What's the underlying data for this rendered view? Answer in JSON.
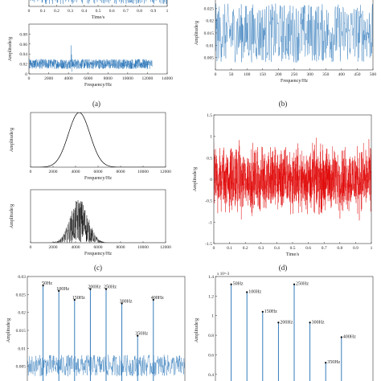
{
  "colors": {
    "blue": "#1f6fb4",
    "red": "#e00000",
    "black": "#000000",
    "axis": "#333333"
  },
  "panel_labels": [
    "(a)",
    "(b)",
    "(c)",
    "(d)"
  ],
  "chart_data": [
    {
      "id": "a-top",
      "type": "line",
      "xlabel": "Time/s",
      "ylabel": "",
      "xlim": [
        0,
        1
      ],
      "ylim": [
        -1,
        1
      ],
      "x_ticks": [
        "0",
        "0.1",
        "0.2",
        "0.3",
        "0.4",
        "0.5",
        "0.6",
        "0.7",
        "0.8",
        "0.9",
        "1"
      ],
      "y_ticks": [
        "0"
      ],
      "color": "#1f6fb4"
    },
    {
      "id": "a-bottom",
      "type": "line",
      "xlabel": "Frequency/Hz",
      "ylabel": "Amplitude/g",
      "xlim": [
        0,
        14000
      ],
      "ylim": [
        0,
        0.1
      ],
      "x_ticks": [
        "0",
        "2000",
        "4000",
        "6000",
        "8000",
        "10000",
        "12000",
        "14000"
      ],
      "y_ticks": [
        "0",
        "0.02",
        "0.04",
        "0.06",
        "0.08"
      ],
      "range": [
        0,
        12500
      ],
      "baseline": 0.02,
      "noise": 0.01,
      "peaks": [
        [
          4300,
          0.09
        ]
      ],
      "color": "#1f6fb4"
    },
    {
      "id": "b",
      "type": "line",
      "xlabel": "Frequency/Hz",
      "ylabel": "Amplitude/g",
      "xlim": [
        0,
        500
      ],
      "ylim": [
        0,
        0.03
      ],
      "x_ticks": [
        "0",
        "50",
        "100",
        "150",
        "200",
        "250",
        "300",
        "350",
        "400",
        "450",
        "500"
      ],
      "y_ticks": [
        "0.005",
        "0.01",
        "0.015",
        "0.02",
        "0.025"
      ],
      "range": [
        0,
        500
      ],
      "baseline": 0.015,
      "noise": 0.012,
      "color": "#1f6fb4"
    },
    {
      "id": "c-top",
      "type": "line",
      "xlabel": "Frequency/Hz",
      "ylabel": "Amplitude/g",
      "xlim": [
        0,
        12500
      ],
      "ylim": [
        0,
        1
      ],
      "x_ticks": [
        "0",
        "2000",
        "4000",
        "6000",
        "8000",
        "10000",
        "12000"
      ],
      "y_ticks": [],
      "gaussian": {
        "center": 4500,
        "sigma": 1000,
        "peak": 1
      },
      "color": "#000000"
    },
    {
      "id": "c-bottom",
      "type": "line",
      "xlabel": "Frequency/Hz",
      "ylabel": "Amplitude/g",
      "xlim": [
        0,
        12500
      ],
      "ylim": [
        0,
        1
      ],
      "x_ticks": [
        "0",
        "2000",
        "4000",
        "6000",
        "8000",
        "10000",
        "12000"
      ],
      "y_ticks": [],
      "gaussian": {
        "center": 4500,
        "sigma": 800,
        "peak": 0.85
      },
      "color": "#000000"
    },
    {
      "id": "d",
      "type": "line",
      "xlabel": "Time/s",
      "ylabel": "Amplitude/g",
      "xlim": [
        0,
        1
      ],
      "ylim": [
        -1.5,
        1.5
      ],
      "x_ticks": [
        "0",
        "0.1",
        "0.2",
        "0.3",
        "0.4",
        "0.5",
        "0.6",
        "0.7",
        "0.8",
        "0.9",
        "1"
      ],
      "y_ticks": [
        "-1.5",
        "-1",
        "-0.5",
        "0",
        "0.5",
        "1",
        "1.5"
      ],
      "color": "#e00000"
    },
    {
      "id": "e",
      "type": "line",
      "xlabel": "",
      "ylabel": "Amplitude/g",
      "xlim": [
        0,
        500
      ],
      "ylim": [
        0,
        0.03
      ],
      "x_ticks": [],
      "y_ticks": [
        "0.005",
        "0.01",
        "0.015",
        "0.02",
        "0.025",
        "0.03"
      ],
      "baseline": 0.004,
      "noise": 0.006,
      "peaks": [
        {
          "x": 50,
          "y": 0.0275,
          "label": "50Hz"
        },
        {
          "x": 100,
          "y": 0.026,
          "label": "100Hz"
        },
        {
          "x": 150,
          "y": 0.0235,
          "label": "150Hz"
        },
        {
          "x": 200,
          "y": 0.0265,
          "label": "200Hz"
        },
        {
          "x": 250,
          "y": 0.0265,
          "label": "250Hz"
        },
        {
          "x": 300,
          "y": 0.0225,
          "label": "300Hz"
        },
        {
          "x": 350,
          "y": 0.0135,
          "label": "350Hz"
        },
        {
          "x": 400,
          "y": 0.0235,
          "label": "400Hz"
        }
      ],
      "color": "#1f6fb4"
    },
    {
      "id": "f",
      "type": "bar",
      "xlabel": "",
      "ylabel": "Amplitude/g",
      "xlim": [
        0,
        500
      ],
      "ylim": [
        0.3,
        1.4
      ],
      "y_exponent": "x 10^-3",
      "x_ticks": [],
      "y_ticks": [
        "0.4",
        "0.6",
        "0.8",
        "1",
        "1.2",
        "1.4"
      ],
      "peaks": [
        {
          "x": 50,
          "y": 1.32,
          "label": "50Hz"
        },
        {
          "x": 100,
          "y": 1.24,
          "label": "100Hz"
        },
        {
          "x": 150,
          "y": 1.04,
          "label": "150Hz"
        },
        {
          "x": 200,
          "y": 0.93,
          "label": "200Hz"
        },
        {
          "x": 250,
          "y": 1.32,
          "label": "250Hz"
        },
        {
          "x": 300,
          "y": 0.93,
          "label": "300Hz"
        },
        {
          "x": 350,
          "y": 0.52,
          "label": "350Hz"
        },
        {
          "x": 400,
          "y": 0.78,
          "label": "400Hz"
        }
      ],
      "color": "#1f6fb4"
    }
  ]
}
